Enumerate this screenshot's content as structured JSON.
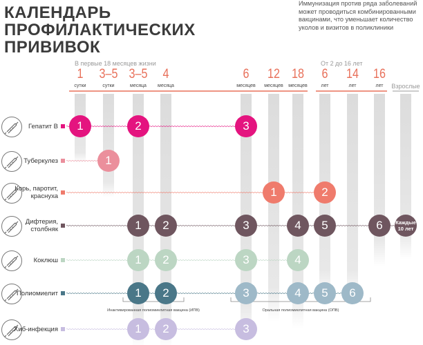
{
  "title_lines": [
    "КАЛЕНДАРЬ",
    "ПРОФИЛАКТИЧЕСКИХ",
    "ПРИВИВОК"
  ],
  "note": "Иммунизация против ряда заболеваний может проводиться комбинированными вакцинами, что уменьшает количество уколов и визитов в поликлиники",
  "periods": {
    "first": "В первые 18 месяцев жизни",
    "second": "От 2 до 16 лет"
  },
  "columns": [
    {
      "num": "1",
      "unit": "сутки"
    },
    {
      "num": "3–5",
      "unit": "сутки"
    },
    {
      "num": "3–5",
      "unit": "месяца"
    },
    {
      "num": "4",
      "unit": "месяца"
    },
    {
      "num": "6",
      "unit": "месяцев"
    },
    {
      "num": "12",
      "unit": "месяцев"
    },
    {
      "num": "18",
      "unit": "месяцев"
    },
    {
      "num": "6",
      "unit": "лет"
    },
    {
      "num": "14",
      "unit": "лет"
    },
    {
      "num": "16",
      "unit": "лет"
    }
  ],
  "adult_label": "Взрослые",
  "colors": {
    "magenta": "#e4147f",
    "pink": "#eb8f9c",
    "salmon": "#ef7b6c",
    "darkmauve": "#6f565f",
    "mint": "#bcd6c3",
    "slate": "#4a7788",
    "lightslate": "#9eb9c8",
    "lavender": "#c7bde0"
  },
  "rows": [
    {
      "name": "hepatitis-b",
      "label_lines": [
        "Гепатит В"
      ],
      "color": "#e4147f",
      "doses": [
        {
          "col": 0,
          "text": "1",
          "color": "#e4147f"
        },
        {
          "col": 2,
          "text": "2",
          "color": "#e4147f"
        },
        {
          "col": 4,
          "text": "3",
          "color": "#e4147f"
        }
      ]
    },
    {
      "name": "tuberculosis",
      "label_lines": [
        "Туберкулез"
      ],
      "color": "#eb8f9c",
      "doses": [
        {
          "col": 1,
          "text": "1",
          "color": "#eb8f9c"
        }
      ]
    },
    {
      "name": "mmr",
      "label_lines": [
        "Корь, паротит,",
        "краснуха"
      ],
      "color": "#ef7b6c",
      "doses": [
        {
          "col": 5,
          "text": "1",
          "color": "#ef7b6c"
        },
        {
          "col": 7,
          "text": "2",
          "color": "#ef7b6c"
        }
      ]
    },
    {
      "name": "diphtheria-tetanus",
      "label_lines": [
        "Дифтерия,",
        "столбняк"
      ],
      "color": "#6f565f",
      "doses": [
        {
          "col": 2,
          "text": "1",
          "color": "#6f565f"
        },
        {
          "col": 3,
          "text": "2",
          "color": "#6f565f"
        },
        {
          "col": 4,
          "text": "3",
          "color": "#6f565f"
        },
        {
          "col": 6,
          "text": "4",
          "color": "#6f565f"
        },
        {
          "col": 7,
          "text": "5",
          "color": "#6f565f"
        },
        {
          "col": 9,
          "text": "6",
          "color": "#6f565f"
        },
        {
          "col": 10,
          "text": "Каждые 10 лет",
          "color": "#6f565f"
        }
      ]
    },
    {
      "name": "pertussis",
      "label_lines": [
        "Коклюш"
      ],
      "color": "#bcd6c3",
      "doses": [
        {
          "col": 2,
          "text": "1",
          "color": "#bcd6c3"
        },
        {
          "col": 3,
          "text": "2",
          "color": "#bcd6c3"
        },
        {
          "col": 4,
          "text": "3",
          "color": "#bcd6c3"
        },
        {
          "col": 6,
          "text": "4",
          "color": "#bcd6c3"
        }
      ]
    },
    {
      "name": "polio",
      "label_lines": [
        "Полиомиелит"
      ],
      "color": "#4a7788",
      "doses": [
        {
          "col": 2,
          "text": "1",
          "color": "#4a7788"
        },
        {
          "col": 3,
          "text": "2",
          "color": "#4a7788"
        },
        {
          "col": 4,
          "text": "3",
          "color": "#9eb9c8"
        },
        {
          "col": 6,
          "text": "4",
          "color": "#9eb9c8"
        },
        {
          "col": 7,
          "text": "5",
          "color": "#9eb9c8"
        },
        {
          "col": 8,
          "text": "6",
          "color": "#9eb9c8"
        }
      ]
    },
    {
      "name": "hib",
      "label_lines": [
        "Хиб-инфекция"
      ],
      "color": "#c7bde0",
      "doses": [
        {
          "col": 2,
          "text": "1",
          "color": "#c7bde0"
        },
        {
          "col": 3,
          "text": "2",
          "color": "#c7bde0"
        },
        {
          "col": 4,
          "text": "3",
          "color": "#c7bde0"
        }
      ]
    }
  ],
  "brackets": [
    {
      "from_col": 2,
      "to_col": 3,
      "label": "Инактивированная полиомиелитная вакцина (ИПВ)"
    },
    {
      "from_col": 4,
      "to_col": 8,
      "label": "Оральная полиомиелитная вакцина (ОПВ)"
    }
  ]
}
